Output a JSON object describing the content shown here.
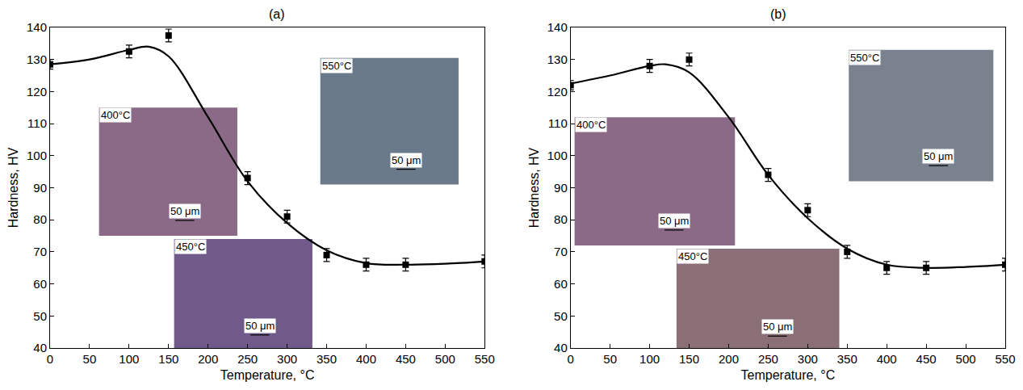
{
  "chart_data": [
    {
      "type": "scatter",
      "title": "(a)",
      "x_label": "Temperature, °C",
      "y_label": "Hardness, HV",
      "xlim": [
        0,
        550
      ],
      "xticks": [
        0,
        50,
        100,
        150,
        200,
        250,
        300,
        350,
        400,
        450,
        500,
        550
      ],
      "ylim": [
        40,
        140
      ],
      "yticks": [
        40,
        50,
        60,
        70,
        80,
        90,
        100,
        110,
        120,
        130,
        140
      ],
      "grid": false,
      "color": "#000000",
      "series": [
        {
          "type": "scatter",
          "marker": "square",
          "x": [
            0,
            100,
            150,
            250,
            300,
            350,
            400,
            450,
            550
          ],
          "values": [
            128.5,
            132.5,
            137.5,
            93,
            81,
            69,
            66,
            66,
            67
          ],
          "errors": [
            1.5,
            2,
            2,
            2,
            2,
            2,
            2,
            2,
            2
          ]
        },
        {
          "type": "line",
          "line_style": "solid",
          "x": [
            0,
            50,
            100,
            125,
            150,
            200,
            250,
            300,
            350,
            400,
            450,
            500,
            550
          ],
          "values": [
            128.5,
            130,
            133,
            134,
            131,
            112,
            92,
            79,
            70.5,
            66.5,
            66,
            66.3,
            67
          ]
        }
      ],
      "insets": [
        {
          "label": "400°C",
          "scale": "50 μm"
        },
        {
          "label": "450°C",
          "scale": "50 μm"
        },
        {
          "label": "550°C",
          "scale": "50 μm"
        }
      ]
    },
    {
      "type": "scatter",
      "title": "(b)",
      "x_label": "Temperature, °C",
      "y_label": "Hardness, HV",
      "xlim": [
        0,
        550
      ],
      "xticks": [
        0,
        50,
        100,
        150,
        200,
        250,
        300,
        350,
        400,
        450,
        500,
        550
      ],
      "ylim": [
        40,
        140
      ],
      "yticks": [
        40,
        50,
        60,
        70,
        80,
        90,
        100,
        110,
        120,
        130,
        140
      ],
      "grid": false,
      "color": "#000000",
      "series": [
        {
          "type": "scatter",
          "marker": "square",
          "x": [
            0,
            100,
            150,
            250,
            300,
            350,
            400,
            450,
            550
          ],
          "values": [
            122,
            128,
            130,
            94,
            83,
            70,
            65,
            65,
            66
          ],
          "errors": [
            1.5,
            2,
            2,
            2,
            2,
            2,
            2,
            2,
            2
          ]
        },
        {
          "type": "line",
          "line_style": "solid",
          "x": [
            0,
            50,
            100,
            120,
            150,
            200,
            250,
            300,
            350,
            400,
            450,
            500,
            550
          ],
          "values": [
            122.5,
            125,
            128,
            128.5,
            126,
            112,
            94,
            80.5,
            71,
            66,
            65,
            65.3,
            66
          ]
        }
      ],
      "insets": [
        {
          "label": "400°C",
          "scale": "50 μm"
        },
        {
          "label": "450°C",
          "scale": "50 μm"
        },
        {
          "label": "550°C",
          "scale": "50 μm"
        }
      ]
    }
  ]
}
